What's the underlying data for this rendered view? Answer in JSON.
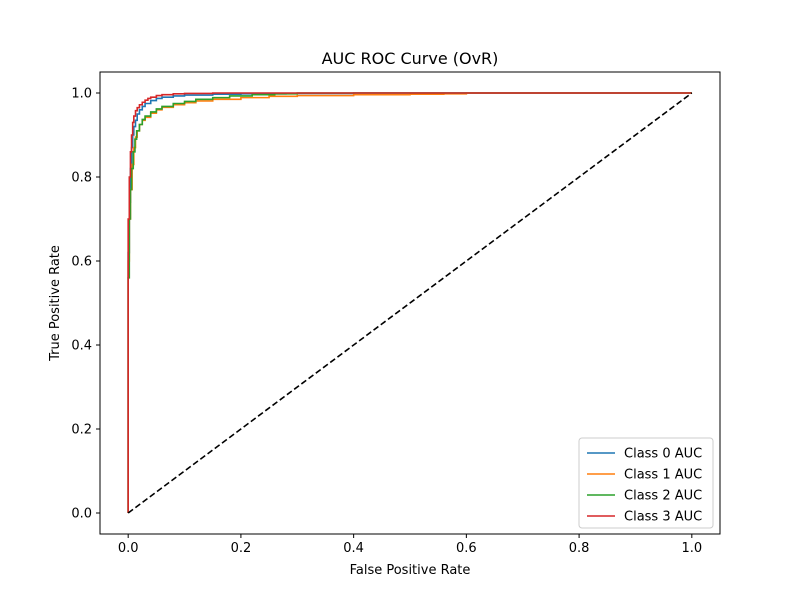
{
  "chart_data": {
    "type": "line",
    "title": "AUC ROC Curve (OvR)",
    "xlabel": "False Positive Rate",
    "ylabel": "True Positive Rate",
    "xlim": [
      -0.05,
      1.05
    ],
    "ylim": [
      -0.05,
      1.05
    ],
    "xticks": [
      "0.0",
      "0.2",
      "0.4",
      "0.6",
      "0.8",
      "1.0"
    ],
    "yticks": [
      "0.0",
      "0.2",
      "0.4",
      "0.6",
      "0.8",
      "1.0"
    ],
    "xtick_values": [
      0,
      0.2,
      0.4,
      0.6,
      0.8,
      1.0
    ],
    "ytick_values": [
      0,
      0.2,
      0.4,
      0.6,
      0.8,
      1.0
    ],
    "grid": false,
    "legend_position": "lower-right",
    "reference_line": {
      "x": [
        0,
        1
      ],
      "y": [
        0,
        1
      ],
      "color": "#000000",
      "style": "dashed"
    },
    "series": [
      {
        "name": "Class 0 AUC",
        "color": "#1f77b4",
        "x": [
          0,
          0,
          0.002,
          0.004,
          0.006,
          0.008,
          0.01,
          0.013,
          0.016,
          0.02,
          0.025,
          0.03,
          0.04,
          0.05,
          0.06,
          0.08,
          0.1,
          0.15,
          0.2,
          0.28,
          0.4,
          0.56,
          1.0
        ],
        "y": [
          0,
          0.62,
          0.74,
          0.82,
          0.87,
          0.9,
          0.92,
          0.935,
          0.95,
          0.96,
          0.968,
          0.975,
          0.982,
          0.987,
          0.99,
          0.993,
          0.995,
          0.997,
          0.998,
          0.999,
          1.0,
          1.0,
          1.0
        ]
      },
      {
        "name": "Class 1 AUC",
        "color": "#ff7f0e",
        "x": [
          0,
          0,
          0.002,
          0.004,
          0.007,
          0.01,
          0.013,
          0.016,
          0.02,
          0.025,
          0.03,
          0.04,
          0.05,
          0.06,
          0.08,
          0.1,
          0.12,
          0.15,
          0.2,
          0.25,
          0.3,
          0.4,
          0.5,
          0.56,
          0.6,
          1.0
        ],
        "y": [
          0,
          0.6,
          0.7,
          0.77,
          0.83,
          0.87,
          0.895,
          0.91,
          0.925,
          0.935,
          0.942,
          0.952,
          0.96,
          0.966,
          0.972,
          0.977,
          0.981,
          0.985,
          0.989,
          0.992,
          0.994,
          0.996,
          0.997,
          0.998,
          1.0,
          1.0
        ]
      },
      {
        "name": "Class 2 AUC",
        "color": "#2ca02c",
        "x": [
          0,
          0,
          0.002,
          0.004,
          0.006,
          0.009,
          0.012,
          0.015,
          0.02,
          0.025,
          0.03,
          0.04,
          0.05,
          0.06,
          0.08,
          0.1,
          0.12,
          0.15,
          0.18,
          0.22,
          0.26,
          0.3,
          1.0
        ],
        "y": [
          0,
          0.56,
          0.7,
          0.77,
          0.82,
          0.86,
          0.89,
          0.91,
          0.925,
          0.937,
          0.945,
          0.955,
          0.962,
          0.968,
          0.975,
          0.98,
          0.985,
          0.989,
          0.993,
          0.996,
          0.998,
          1.0,
          1.0
        ]
      },
      {
        "name": "Class 3 AUC",
        "color": "#d62728",
        "x": [
          0,
          0,
          0.002,
          0.004,
          0.006,
          0.008,
          0.01,
          0.013,
          0.016,
          0.02,
          0.025,
          0.03,
          0.035,
          0.04,
          0.05,
          0.06,
          0.08,
          0.1,
          0.15,
          1.0
        ],
        "y": [
          0,
          0.7,
          0.8,
          0.86,
          0.9,
          0.93,
          0.945,
          0.958,
          0.965,
          0.972,
          0.978,
          0.983,
          0.987,
          0.99,
          0.994,
          0.996,
          0.998,
          0.999,
          1.0,
          1.0
        ]
      }
    ]
  }
}
